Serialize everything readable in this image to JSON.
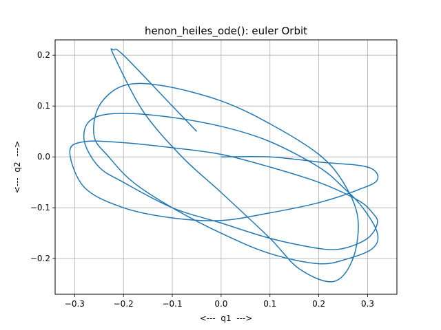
{
  "chart_data": {
    "type": "line",
    "title": "henon_heiles_ode(): euler Orbit",
    "xlabel": "<---  q1  --->",
    "ylabel": "<---  q2  --->",
    "xlim": [
      -0.34,
      0.36
    ],
    "ylim": [
      -0.27,
      0.23
    ],
    "xticks": [
      -0.3,
      -0.2,
      -0.1,
      0.0,
      0.1,
      0.2,
      0.3
    ],
    "xtick_labels": [
      "−0.3",
      "−0.2",
      "−0.1",
      "0.0",
      "0.1",
      "0.2",
      "0.3"
    ],
    "yticks": [
      0.2,
      0.1,
      0.0,
      -0.1,
      -0.2
    ],
    "ytick_labels": [
      "0.2",
      "0.1",
      "0.0",
      "−0.1",
      "−0.2"
    ],
    "grid": true,
    "series": [
      {
        "color": "#1f77b4",
        "x": [
          0.0,
          0.1,
          0.2,
          0.3,
          0.32,
          0.28,
          0.2,
          0.1,
          0.0,
          -0.1,
          -0.2,
          -0.28,
          -0.31,
          -0.28,
          -0.2,
          -0.1,
          0.0,
          0.1,
          0.2,
          0.28,
          0.31,
          0.32,
          0.3,
          0.25,
          0.2,
          0.1,
          0.0,
          -0.1,
          -0.2,
          -0.25,
          -0.28,
          -0.27,
          -0.22,
          -0.12,
          0.0,
          0.1,
          0.2,
          0.25,
          0.29,
          0.32,
          0.31,
          0.26,
          0.2,
          0.1,
          0.0,
          -0.1,
          -0.18,
          -0.23,
          -0.26,
          -0.25,
          -0.2,
          -0.12,
          0.0,
          0.1,
          0.2,
          0.25,
          0.28,
          0.27,
          0.23,
          0.16,
          0.1,
          0.0,
          -0.08,
          -0.16,
          -0.22,
          -0.22,
          -0.2,
          -0.1,
          -0.05
        ],
        "y": [
          0.0,
          0.0,
          -0.01,
          -0.02,
          -0.045,
          -0.065,
          -0.09,
          -0.11,
          -0.125,
          -0.12,
          -0.1,
          -0.06,
          0.01,
          0.03,
          0.028,
          0.018,
          0.005,
          -0.02,
          -0.05,
          -0.085,
          -0.11,
          -0.13,
          -0.16,
          -0.18,
          -0.18,
          -0.16,
          -0.13,
          -0.1,
          -0.05,
          -0.02,
          0.03,
          0.07,
          0.085,
          0.08,
          0.06,
          0.03,
          -0.02,
          -0.06,
          -0.1,
          -0.15,
          -0.18,
          -0.2,
          -0.21,
          -0.19,
          -0.15,
          -0.1,
          -0.05,
          0.0,
          0.04,
          0.1,
          0.14,
          0.14,
          0.11,
          0.065,
          0.005,
          -0.05,
          -0.12,
          -0.2,
          -0.245,
          -0.22,
          -0.16,
          -0.07,
          0.0,
          0.09,
          0.2,
          0.21,
          0.2,
          0.1,
          0.05
        ]
      }
    ]
  }
}
